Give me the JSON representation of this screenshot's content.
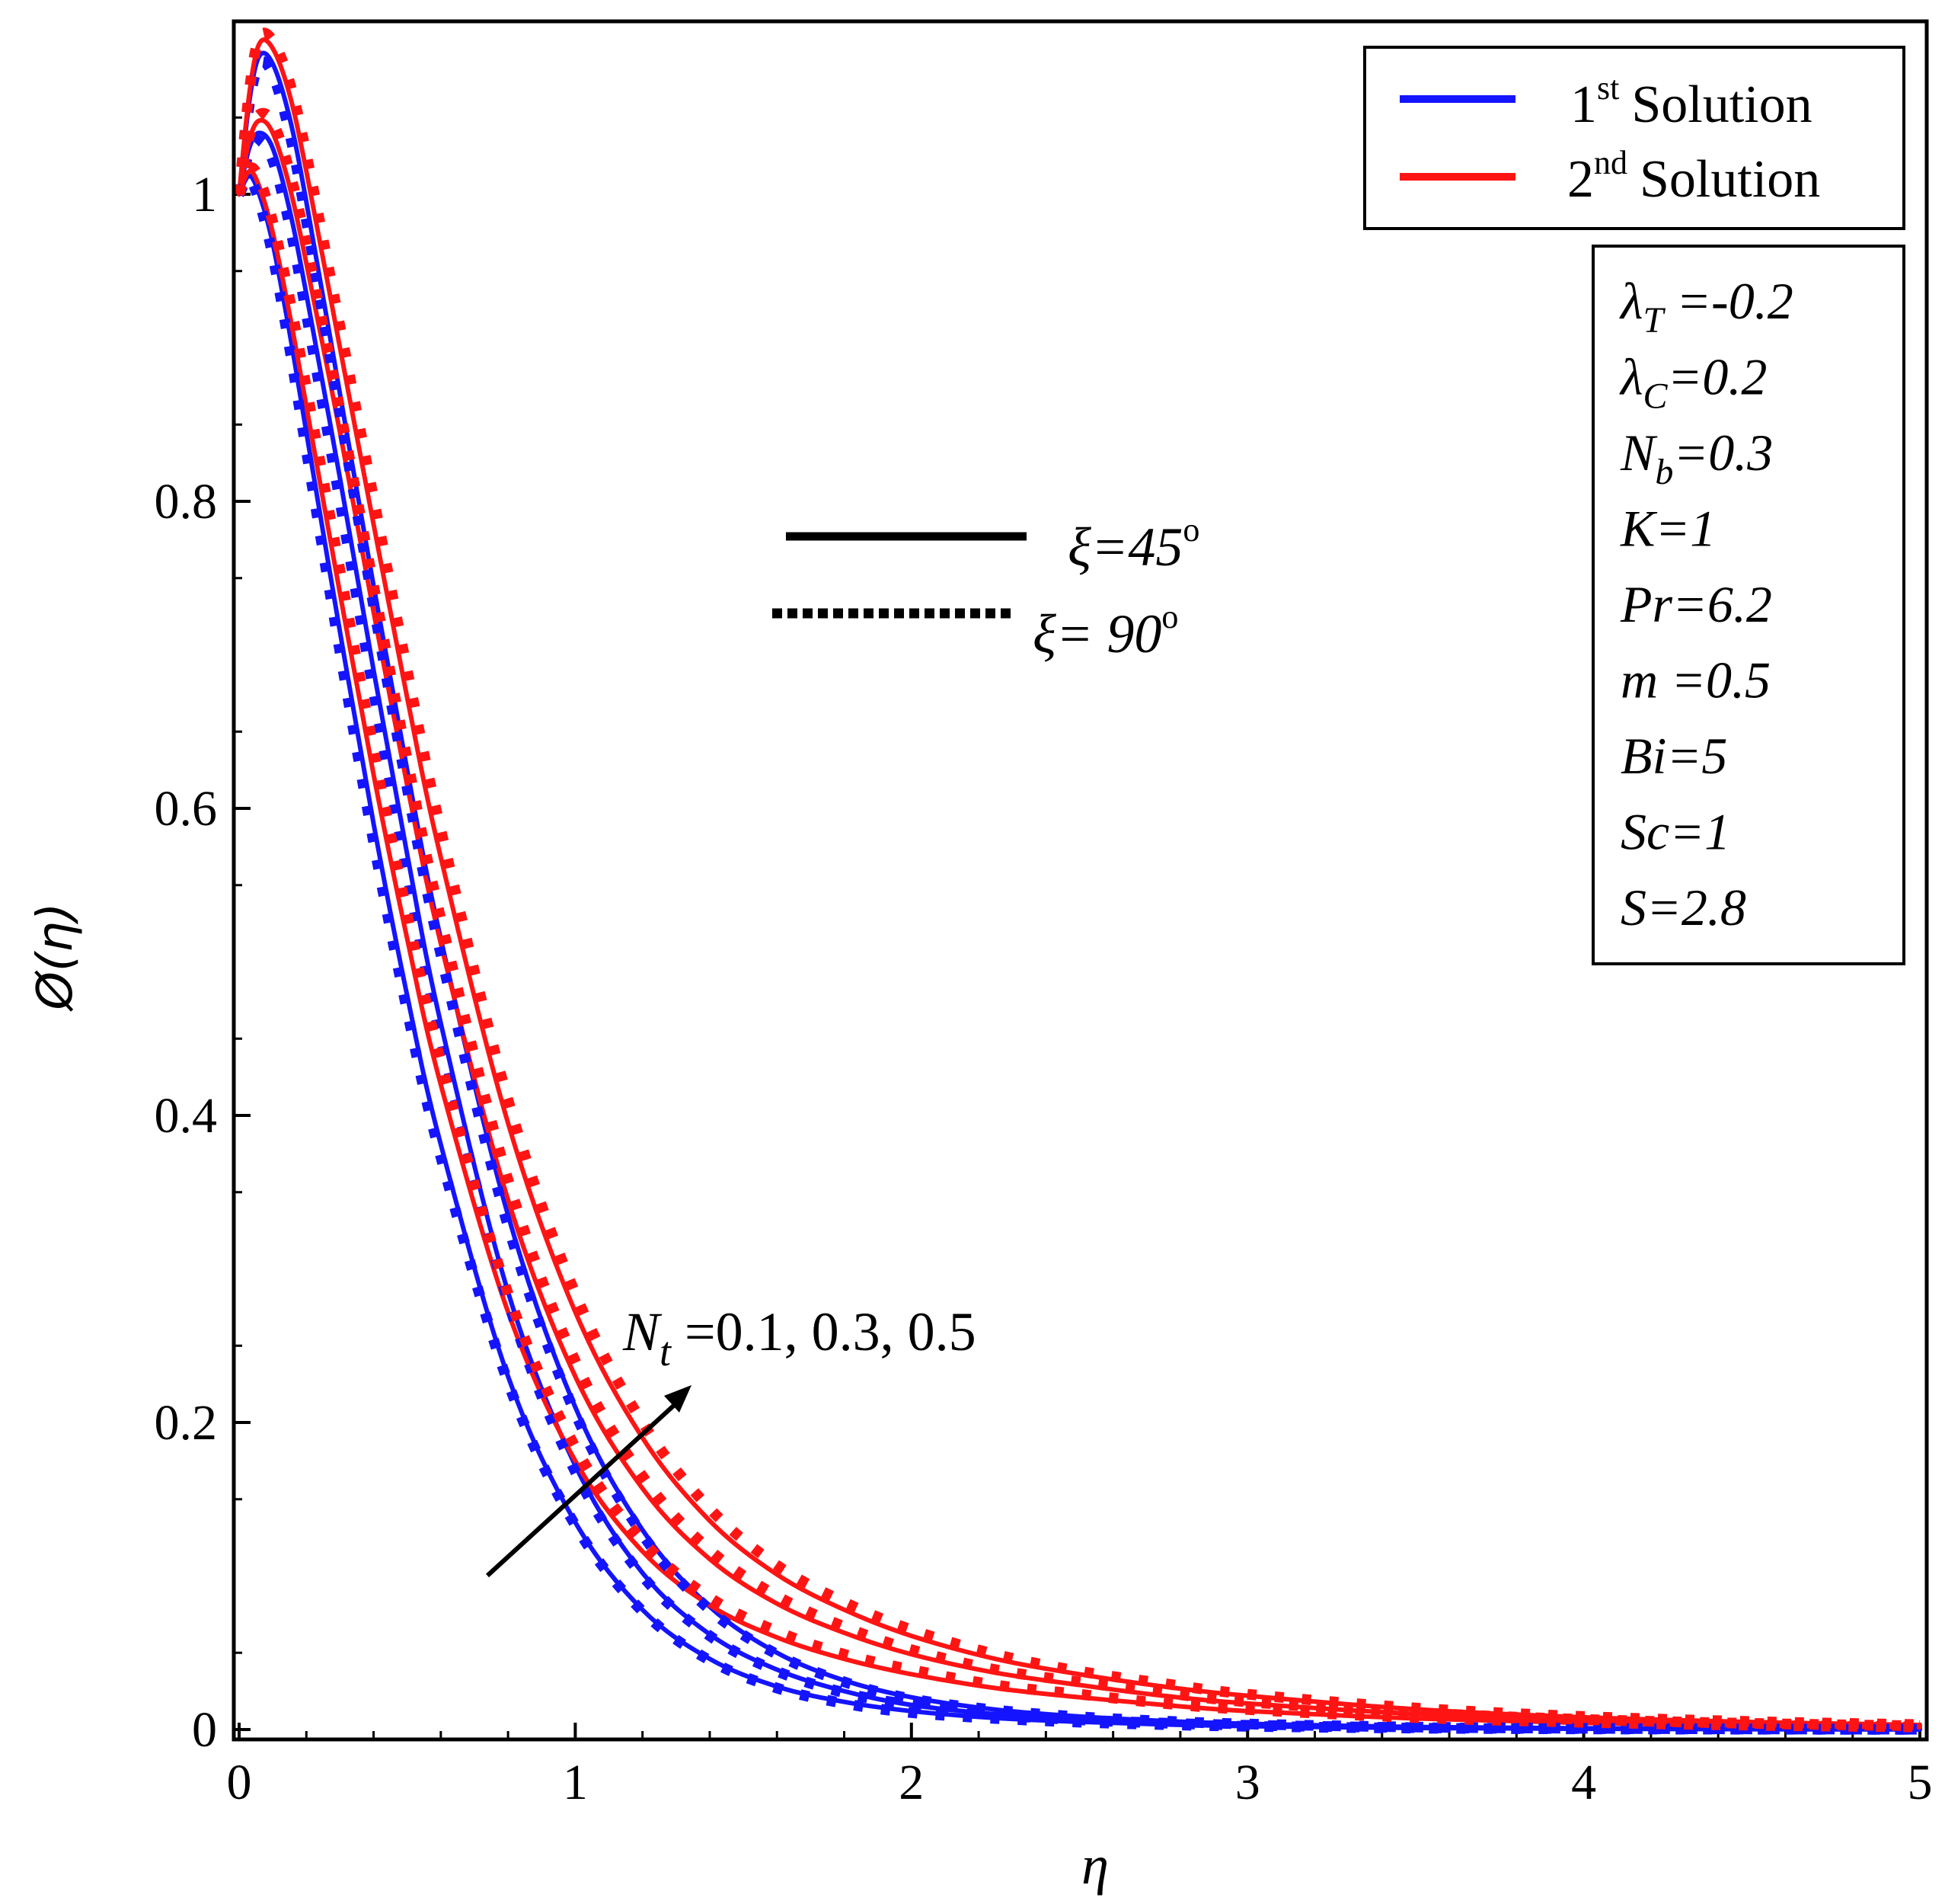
{
  "chart_data": {
    "type": "line",
    "xlabel": "η",
    "ylabel": "Ø(η)",
    "xlim": [
      0,
      5
    ],
    "ylim": [
      0,
      1.1
    ],
    "x_ticks": [
      "0",
      "1",
      "2",
      "3",
      "4",
      "5"
    ],
    "y_ticks": [
      "0",
      "0.2",
      "0.4",
      "0.6",
      "0.8",
      "1"
    ],
    "legend": {
      "position": "top-right",
      "entries": [
        {
          "base": "1",
          "sup": "st",
          "text": "Solution",
          "color": "#1414ff"
        },
        {
          "base": "2",
          "sup": "nd",
          "text": "Solution",
          "color": "#ff1414"
        }
      ]
    },
    "style_legend": {
      "solid_label": "ξ=45",
      "dotted_label": "ξ= 90",
      "degree": "o"
    },
    "params": [
      {
        "sym": "λ",
        "sub": "T",
        "val": " =-0.2"
      },
      {
        "sym": "λ",
        "sub": "C",
        "val": "=0.2"
      },
      {
        "sym": "N",
        "sub": "b",
        "val": "=0.3"
      },
      {
        "sym": "K",
        "sub": "",
        "val": "=1"
      },
      {
        "sym": "Pr",
        "sub": "",
        "val": "=6.2"
      },
      {
        "sym": "m",
        "sub": "",
        "val": " =0.5"
      },
      {
        "sym": " Bi",
        "sub": "",
        "val": "=5"
      },
      {
        "sym": "Sc",
        "sub": "",
        "val": "=1"
      },
      {
        "sym": "S",
        "sub": "",
        "val": "=2.8"
      }
    ],
    "annotation": {
      "sym": "N",
      "sub": "t",
      "val": " =0.1, 0.3, 0.5"
    },
    "x": [
      0,
      0.03,
      0.06,
      0.1,
      0.15,
      0.2,
      0.3,
      0.4,
      0.5,
      0.6,
      0.8,
      1.0,
      1.2,
      1.4,
      1.6,
      1.8,
      2.0,
      2.25,
      2.5,
      2.75,
      3.0,
      3.5,
      4.0,
      4.5,
      5.0
    ],
    "series": [
      {
        "name": "1st Solution, Nt=0.1, ξ=45°",
        "solution": 1,
        "style": "solid",
        "values": [
          1.0,
          1.012,
          1.0,
          0.968,
          0.91,
          0.845,
          0.715,
          0.59,
          0.478,
          0.381,
          0.23,
          0.135,
          0.078,
          0.046,
          0.028,
          0.018,
          0.012,
          0.0075,
          0.005,
          0.0033,
          0.0022,
          0.001,
          0.0005,
          0.0002,
          0.0001
        ]
      },
      {
        "name": "1st Solution, Nt=0.3, ξ=45°",
        "solution": 1,
        "style": "solid",
        "values": [
          1.0,
          1.03,
          1.04,
          1.03,
          0.99,
          0.935,
          0.815,
          0.69,
          0.57,
          0.46,
          0.285,
          0.172,
          0.102,
          0.062,
          0.039,
          0.025,
          0.016,
          0.01,
          0.0065,
          0.0043,
          0.0028,
          0.0013,
          0.0006,
          0.0003,
          0.0001
        ]
      },
      {
        "name": "1st Solution, Nt=0.5, ξ=45°",
        "solution": 1,
        "style": "solid",
        "values": [
          1.0,
          1.06,
          1.09,
          1.085,
          1.05,
          0.995,
          0.87,
          0.745,
          0.625,
          0.515,
          0.335,
          0.21,
          0.13,
          0.08,
          0.05,
          0.032,
          0.021,
          0.013,
          0.0085,
          0.0056,
          0.0037,
          0.0017,
          0.0008,
          0.0004,
          0.0002
        ]
      },
      {
        "name": "2nd Solution, Nt=0.1, ξ=45°",
        "solution": 2,
        "style": "solid",
        "values": [
          1.0,
          1.015,
          1.005,
          0.975,
          0.922,
          0.862,
          0.74,
          0.622,
          0.515,
          0.42,
          0.272,
          0.175,
          0.116,
          0.081,
          0.06,
          0.046,
          0.036,
          0.027,
          0.021,
          0.016,
          0.012,
          0.0072,
          0.0043,
          0.0026,
          0.0016
        ]
      },
      {
        "name": "2nd Solution, Nt=0.3, ξ=45°",
        "solution": 2,
        "style": "solid",
        "values": [
          1.0,
          1.035,
          1.048,
          1.04,
          1.005,
          0.955,
          0.845,
          0.728,
          0.615,
          0.512,
          0.345,
          0.23,
          0.157,
          0.111,
          0.082,
          0.063,
          0.049,
          0.037,
          0.029,
          0.022,
          0.017,
          0.0102,
          0.0062,
          0.0038,
          0.0023
        ]
      },
      {
        "name": "2nd Solution, Nt=0.5, ξ=45°",
        "solution": 2,
        "style": "solid",
        "values": [
          1.0,
          1.065,
          1.098,
          1.095,
          1.065,
          1.015,
          0.9,
          0.785,
          0.672,
          0.568,
          0.395,
          0.272,
          0.19,
          0.136,
          0.101,
          0.078,
          0.061,
          0.046,
          0.036,
          0.028,
          0.022,
          0.0132,
          0.008,
          0.0049,
          0.003
        ]
      },
      {
        "name": "1st Solution, Nt=0.1, ξ=90°",
        "solution": 1,
        "style": "dotted",
        "values": [
          1.0,
          1.01,
          0.995,
          0.96,
          0.9,
          0.833,
          0.702,
          0.578,
          0.468,
          0.373,
          0.226,
          0.133,
          0.077,
          0.045,
          0.027,
          0.017,
          0.011,
          0.0072,
          0.0048,
          0.0032,
          0.0021,
          0.0009,
          0.0004,
          0.0002,
          0.0001
        ]
      },
      {
        "name": "1st Solution, Nt=0.3, ξ=90°",
        "solution": 1,
        "style": "dotted",
        "values": [
          1.0,
          1.028,
          1.035,
          1.022,
          0.98,
          0.922,
          0.8,
          0.676,
          0.558,
          0.45,
          0.279,
          0.168,
          0.1,
          0.061,
          0.038,
          0.024,
          0.016,
          0.0097,
          0.0063,
          0.0042,
          0.0028,
          0.0012,
          0.0006,
          0.0003,
          0.0001
        ]
      },
      {
        "name": "1st Solution, Nt=0.5, ξ=90°",
        "solution": 1,
        "style": "dotted",
        "values": [
          1.0,
          1.058,
          1.085,
          1.078,
          1.04,
          0.983,
          0.857,
          0.732,
          0.613,
          0.505,
          0.328,
          0.206,
          0.127,
          0.078,
          0.049,
          0.031,
          0.02,
          0.0127,
          0.0083,
          0.0055,
          0.0036,
          0.0016,
          0.0008,
          0.0004,
          0.0002
        ]
      },
      {
        "name": "2nd Solution, Nt=0.1, ξ=90°",
        "solution": 2,
        "style": "dotted",
        "values": [
          1.0,
          1.017,
          1.01,
          0.982,
          0.932,
          0.874,
          0.755,
          0.638,
          0.531,
          0.435,
          0.284,
          0.184,
          0.123,
          0.086,
          0.064,
          0.049,
          0.039,
          0.029,
          0.023,
          0.017,
          0.013,
          0.0078,
          0.0047,
          0.0028,
          0.0017
        ]
      },
      {
        "name": "2nd Solution, Nt=0.3, ξ=90°",
        "solution": 2,
        "style": "dotted",
        "values": [
          1.0,
          1.037,
          1.052,
          1.047,
          1.015,
          0.967,
          0.86,
          0.745,
          0.632,
          0.528,
          0.358,
          0.24,
          0.165,
          0.117,
          0.087,
          0.067,
          0.052,
          0.039,
          0.031,
          0.024,
          0.018,
          0.011,
          0.0066,
          0.004,
          0.0024
        ]
      },
      {
        "name": "2nd Solution, Nt=0.5, ξ=90°",
        "solution": 2,
        "style": "dotted",
        "values": [
          1.0,
          1.067,
          1.102,
          1.1,
          1.073,
          1.026,
          0.914,
          0.802,
          0.69,
          0.586,
          0.41,
          0.284,
          0.2,
          0.144,
          0.107,
          0.083,
          0.065,
          0.049,
          0.038,
          0.03,
          0.023,
          0.014,
          0.0085,
          0.0052,
          0.0032
        ]
      }
    ]
  }
}
